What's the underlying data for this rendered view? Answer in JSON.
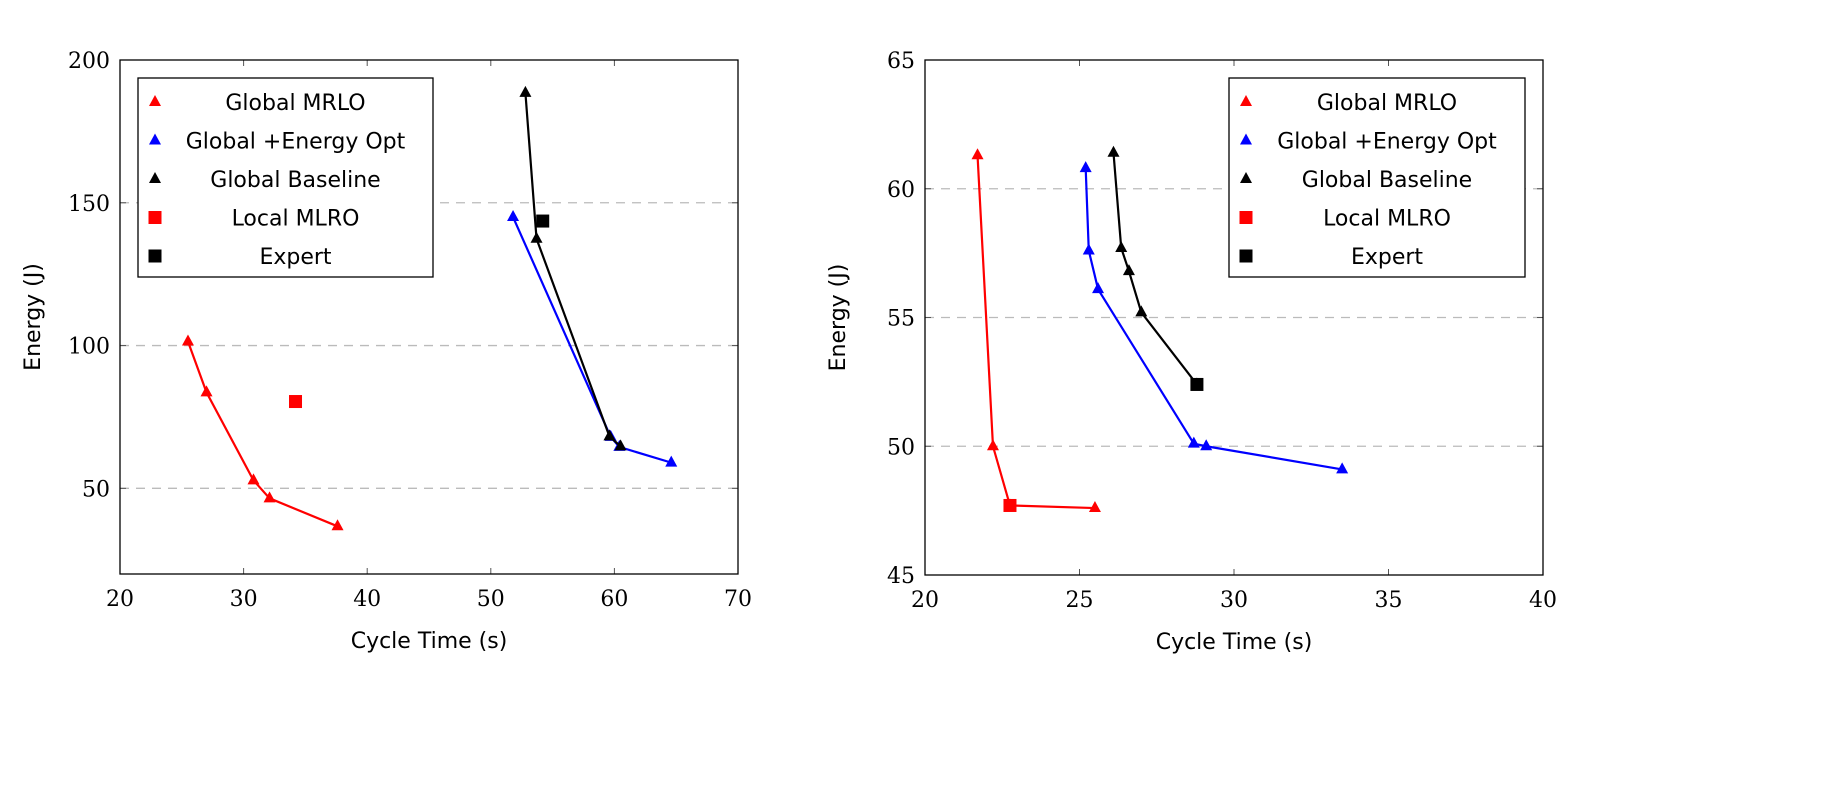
{
  "chart_data": [
    {
      "type": "line",
      "xlabel": "Cycle Time (s)",
      "ylabel": "Energy (J)",
      "xlim": [
        20,
        70
      ],
      "ylim": [
        20,
        200
      ],
      "xticks": [
        "20",
        "30",
        "40",
        "50",
        "60",
        "70"
      ],
      "xtickvals": [
        20,
        30,
        40,
        50,
        60,
        70
      ],
      "yticks": [
        "50",
        "100",
        "150",
        "200"
      ],
      "ytickvals": [
        50,
        100,
        150,
        200
      ],
      "grid": "horizontal dashed",
      "legend_position": "top-left",
      "series": [
        {
          "name": "Global MRLO",
          "color": "#ff0000",
          "marker": "triangle",
          "line": true,
          "points": [
            [
              25.5,
              101.4
            ],
            [
              27.0,
              83.6
            ],
            [
              30.8,
              52.8
            ],
            [
              32.1,
              46.5
            ],
            [
              37.6,
              36.7
            ]
          ]
        },
        {
          "name": "Global +Energy Opt",
          "color": "#0000ff",
          "marker": "triangle",
          "line": true,
          "points": [
            [
              51.8,
              145
            ],
            [
              59.7,
              68
            ],
            [
              60.4,
              64.5
            ],
            [
              64.6,
              59
            ]
          ]
        },
        {
          "name": "Global Baseline",
          "color": "#000000",
          "marker": "triangle",
          "line": true,
          "points": [
            [
              52.8,
              188.5
            ],
            [
              53.7,
              137.4
            ],
            [
              59.6,
              68.2
            ],
            [
              60.5,
              64.7
            ]
          ]
        },
        {
          "name": "Local MLRO",
          "color": "#ff0000",
          "marker": "square",
          "line": false,
          "points": [
            [
              34.2,
              80.4
            ]
          ]
        },
        {
          "name": "Expert",
          "color": "#000000",
          "marker": "square",
          "line": false,
          "points": [
            [
              54.2,
              143.6
            ]
          ]
        }
      ]
    },
    {
      "type": "line",
      "xlabel": "Cycle Time (s)",
      "ylabel": "Energy (J)",
      "xlim": [
        20,
        40
      ],
      "ylim": [
        45,
        65
      ],
      "xticks": [
        "20",
        "25",
        "30",
        "35",
        "40"
      ],
      "xtickvals": [
        20,
        25,
        30,
        35,
        40
      ],
      "yticks": [
        "45",
        "50",
        "55",
        "60",
        "65"
      ],
      "ytickvals": [
        45,
        50,
        55,
        60,
        65
      ],
      "grid": "horizontal dashed",
      "legend_position": "top-right",
      "series": [
        {
          "name": "Global MRLO",
          "color": "#ff0000",
          "marker": "triangle",
          "line": true,
          "points": [
            [
              21.7,
              61.3
            ],
            [
              22.2,
              50.0
            ],
            [
              22.75,
              47.7
            ],
            [
              25.5,
              47.6
            ]
          ]
        },
        {
          "name": "Global +Energy Opt",
          "color": "#0000ff",
          "marker": "triangle",
          "line": true,
          "points": [
            [
              25.2,
              60.8
            ],
            [
              25.3,
              57.6
            ],
            [
              25.6,
              56.1
            ],
            [
              28.7,
              50.1
            ],
            [
              29.1,
              50.0
            ],
            [
              33.5,
              49.1
            ]
          ]
        },
        {
          "name": "Global Baseline",
          "color": "#000000",
          "marker": "triangle",
          "line": true,
          "points": [
            [
              26.1,
              61.4
            ],
            [
              26.35,
              57.7
            ],
            [
              26.6,
              56.8
            ],
            [
              27.0,
              55.2
            ],
            [
              28.8,
              52.4
            ]
          ]
        },
        {
          "name": "Local MLRO",
          "color": "#ff0000",
          "marker": "square",
          "line": false,
          "points": [
            [
              22.75,
              47.7
            ]
          ]
        },
        {
          "name": "Expert",
          "color": "#000000",
          "marker": "square",
          "line": false,
          "points": [
            [
              28.8,
              52.4
            ]
          ]
        }
      ]
    }
  ]
}
